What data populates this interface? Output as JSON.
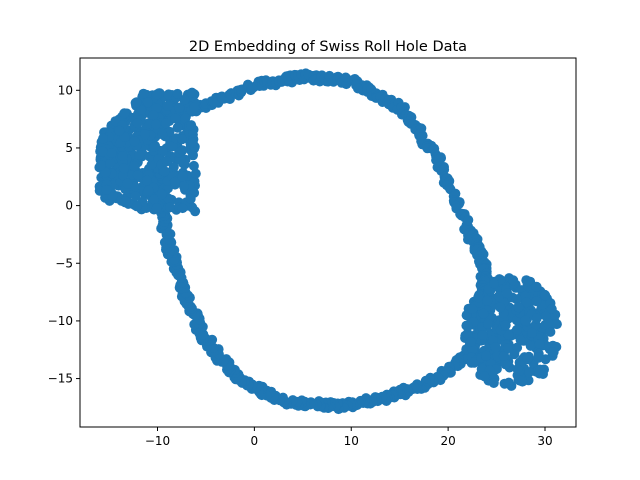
{
  "chart_data": {
    "type": "scatter",
    "title": "2D Embedding of Swiss Roll Hole Data",
    "xlabel": "",
    "ylabel": "",
    "xlim": [
      -18.0,
      33.2
    ],
    "ylim": [
      -19.2,
      12.8
    ],
    "xticks": [
      -10,
      0,
      10,
      20,
      30
    ],
    "yticks": [
      10,
      5,
      0,
      -5,
      -10,
      -15
    ],
    "xtick_labels": [
      "−10",
      "0",
      "10",
      "20",
      "30"
    ],
    "ytick_labels": [
      "10",
      "5",
      "0",
      "−5",
      "−10",
      "−15"
    ],
    "grid": false,
    "legend": "none",
    "marker_color": "#1f77b4",
    "point_count_estimate": 1500,
    "series": [
      {
        "points": {
          "ring_outline": [
            [
              -10.0,
              8.0
            ],
            [
              -5.0,
              8.6
            ],
            [
              0.0,
              10.4
            ],
            [
              5.0,
              11.2
            ],
            [
              10.0,
              10.8
            ],
            [
              15.0,
              8.6
            ],
            [
              19.0,
              4.0
            ],
            [
              22.0,
              -2.0
            ],
            [
              23.6,
              -5.0
            ],
            [
              23.8,
              -7.5
            ],
            [
              22.5,
              -12.5
            ],
            [
              19.0,
              -15.0
            ],
            [
              14.0,
              -16.6
            ],
            [
              9.0,
              -17.4
            ],
            [
              3.0,
              -17.0
            ],
            [
              -2.0,
              -14.8
            ],
            [
              -5.5,
              -11.0
            ],
            [
              -7.5,
              -7.0
            ],
            [
              -9.0,
              -3.0
            ],
            [
              -9.6,
              0.5
            ],
            [
              -10.0,
              5.0
            ]
          ],
          "left_cluster": {
            "x_range": [
              -16.0,
              -6.0
            ],
            "y_range": [
              -0.5,
              9.8
            ],
            "approx_center": [
              -12.0,
              3.5
            ]
          },
          "right_cluster": {
            "x_range": [
              19.0,
              31.5
            ],
            "y_range": [
              -16.5,
              -6.0
            ],
            "approx_center": [
              26.5,
              -11.0
            ]
          }
        }
      }
    ]
  }
}
